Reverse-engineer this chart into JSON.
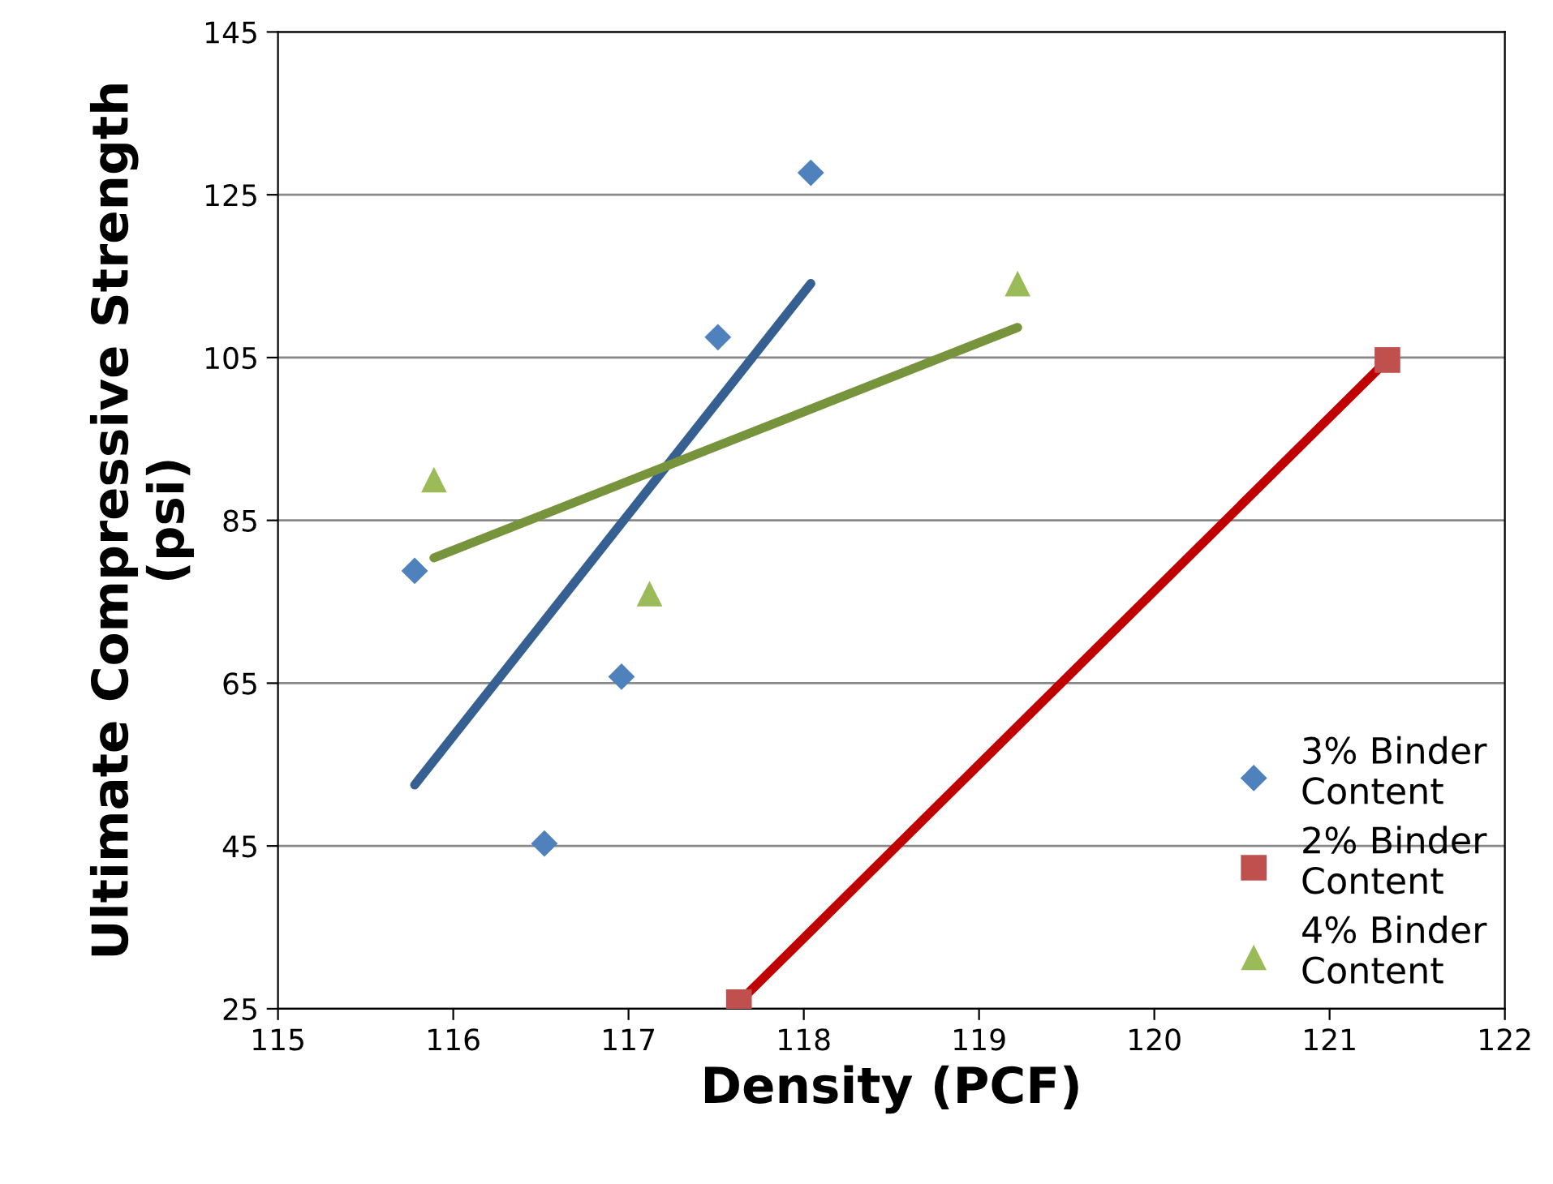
{
  "chart_data": {
    "type": "scatter",
    "xlabel": "Density (PCF)",
    "ylabel": "Ultimate Compressive Strength (psi)",
    "xlim": [
      115,
      122
    ],
    "xticks": [
      115,
      116,
      117,
      118,
      119,
      120,
      121,
      122
    ],
    "ylim": [
      25,
      145
    ],
    "yticks": [
      25,
      45,
      65,
      85,
      105,
      125,
      145
    ],
    "grid": "y",
    "legend": "bottom right",
    "series": [
      {
        "name": "3% Binder Content",
        "marker": "diamond",
        "color": "#4f81bd",
        "x": [
          115.78,
          116.52,
          116.96,
          117.51,
          118.04
        ],
        "values": [
          78.8,
          45.3,
          65.8,
          107.5,
          127.7
        ]
      },
      {
        "name": "2% Binder Content",
        "marker": "square",
        "color": "#c0504d",
        "x": [
          117.63,
          121.33
        ],
        "values": [
          25.8,
          104.7
        ]
      },
      {
        "name": "4% Binder Content",
        "marker": "triangle",
        "color": "#9bbb59",
        "x": [
          115.89,
          117.12,
          119.22
        ],
        "values": [
          90.0,
          76.0,
          114.1
        ]
      },
      {
        "type": "line",
        "color": "#376092",
        "x": [
          115.78,
          118.04
        ],
        "values": [
          52.5,
          114.1
        ]
      },
      {
        "type": "line",
        "color": "#c00000",
        "x": [
          117.63,
          121.33
        ],
        "values": [
          25.8,
          104.7
        ]
      },
      {
        "type": "line",
        "color": "#77933c",
        "x": [
          115.89,
          119.22
        ],
        "values": [
          80.4,
          108.7
        ]
      }
    ]
  }
}
